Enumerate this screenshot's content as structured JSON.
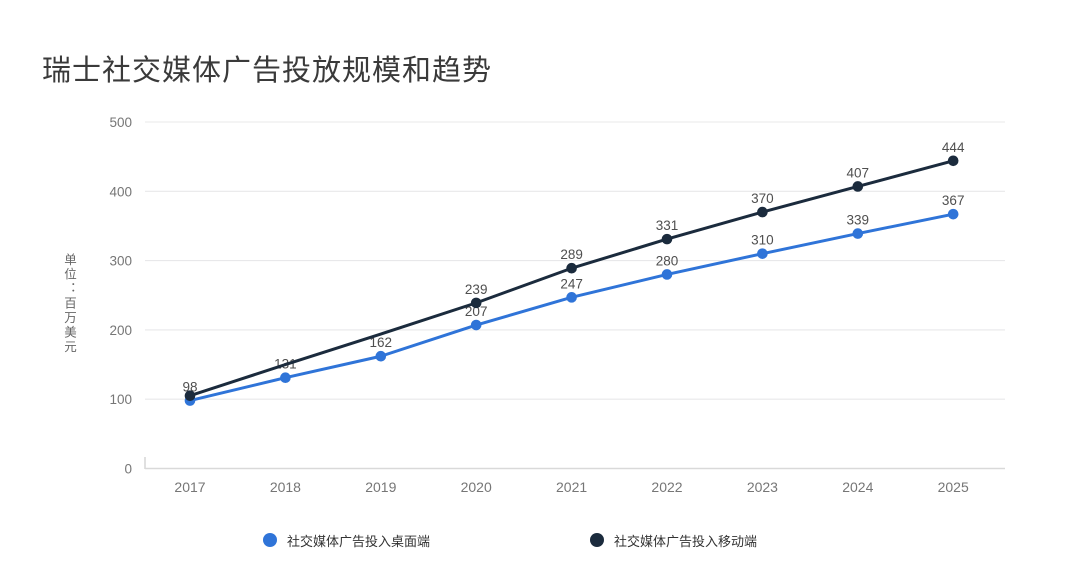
{
  "title": "瑞士社交媒体广告投放规模和趋势",
  "y_axis_unit": "单位：百万美元",
  "chart_data": {
    "type": "line",
    "title": "瑞士社交媒体广告投放规模和趋势",
    "xlabel": "",
    "ylabel": "单位：百万美元",
    "categories": [
      "2017",
      "2018",
      "2019",
      "2020",
      "2021",
      "2022",
      "2023",
      "2024",
      "2025"
    ],
    "series": [
      {
        "name": "社交媒体广告投入桌面端",
        "color": "#2f74d8",
        "values": [
          98,
          131,
          162,
          207,
          247,
          280,
          310,
          339,
          367
        ],
        "show_marker": [
          true,
          true,
          true,
          true,
          true,
          true,
          true,
          true,
          true
        ],
        "show_label": [
          true,
          true,
          true,
          true,
          true,
          true,
          true,
          true,
          true
        ]
      },
      {
        "name": "社交媒体广告投入移动端",
        "color": "#1b2b3d",
        "values": [
          105,
          150,
          194,
          239,
          289,
          331,
          370,
          407,
          444
        ],
        "show_marker": [
          true,
          false,
          false,
          true,
          true,
          true,
          true,
          true,
          true
        ],
        "show_label": [
          false,
          false,
          false,
          true,
          true,
          true,
          true,
          true,
          true
        ]
      }
    ],
    "ylim": [
      0,
      500
    ],
    "yticks": [
      0,
      100,
      200,
      300,
      400,
      500
    ],
    "grid": true,
    "legend_position": "bottom"
  },
  "colors": {
    "grid": "#e8e8ea",
    "axis": "#d9d9d9",
    "tick_text": "#767676",
    "point_label": "#4f4f4f",
    "title_text": "#3a3a3a",
    "legend_text": "#333333",
    "background": "#ffffff"
  }
}
